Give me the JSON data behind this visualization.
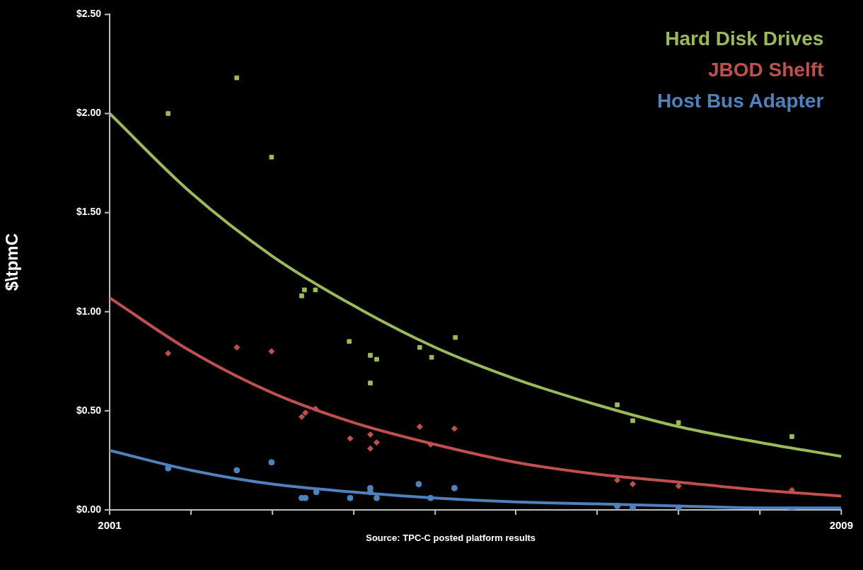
{
  "chart_data": {
    "type": "scatter",
    "ylabel": "$\\tpmC",
    "annotations": [
      "Source: TPC-C posted platform results"
    ],
    "xlim": [
      2001,
      2009
    ],
    "xticks": [
      2001,
      {
        "value": 2001.89,
        "label": null
      },
      {
        "value": 2002.78,
        "label": null
      },
      {
        "value": 2003.67,
        "label": null
      },
      {
        "value": 2004.56,
        "label": null
      },
      {
        "value": 2005.44,
        "label": null
      },
      {
        "value": 2006.33,
        "label": null
      },
      {
        "value": 2007.22,
        "label": null
      },
      {
        "value": 2008.11,
        "label": null
      },
      2009
    ],
    "ylim": [
      0,
      2.5
    ],
    "yticks": [
      {
        "value": 0,
        "label": "$0.00"
      },
      {
        "value": 0.5,
        "label": "$0.50"
      },
      {
        "value": 1,
        "label": "$1.00"
      },
      {
        "value": 1.5,
        "label": "$1.50"
      },
      {
        "value": 2,
        "label": "$2.00"
      },
      {
        "value": 2.5,
        "label": "$2.50"
      }
    ],
    "grid": false,
    "legend": "top right",
    "series": [
      {
        "name": "Hard Disk Drives",
        "color": "#9bbb59",
        "marker": "square",
        "x": [
          2001.64,
          2002.39,
          2002.77,
          2003.1,
          2003.13,
          2003.25,
          2003.62,
          2003.85,
          2003.92,
          2003.85,
          2004.39,
          2004.52,
          2004.78,
          2006.55,
          2006.72,
          2007.22,
          2008.46
        ],
        "values": [
          2.0,
          2.18,
          1.78,
          1.08,
          1.11,
          1.11,
          0.85,
          0.78,
          0.76,
          0.64,
          0.82,
          0.77,
          0.87,
          0.53,
          0.45,
          0.44,
          0.37
        ]
      },
      {
        "name": "JBOD Shelft",
        "color": "#c0504d",
        "marker": "diamond",
        "x": [
          2001.64,
          2002.39,
          2002.77,
          2003.1,
          2003.14,
          2003.25,
          2003.63,
          2003.85,
          2003.92,
          2003.85,
          2004.39,
          2004.51,
          2004.77,
          2006.55,
          2006.72,
          2007.22,
          2008.46
        ],
        "values": [
          0.79,
          0.82,
          0.8,
          0.47,
          0.49,
          0.51,
          0.36,
          0.38,
          0.34,
          0.31,
          0.42,
          0.33,
          0.41,
          0.15,
          0.13,
          0.12,
          0.1
        ]
      },
      {
        "name": "Host Bus Adapter",
        "color": "#4f81bd",
        "marker": "circle",
        "x": [
          2001.64,
          2002.39,
          2002.77,
          2003.1,
          2003.14,
          2003.26,
          2003.63,
          2003.85,
          2003.85,
          2003.92,
          2004.38,
          2004.51,
          2004.77,
          2006.55,
          2006.72,
          2007.22,
          2008.46
        ],
        "values": [
          0.21,
          0.2,
          0.24,
          0.06,
          0.06,
          0.09,
          0.06,
          0.11,
          0.09,
          0.06,
          0.13,
          0.06,
          0.11,
          0.02,
          0.01,
          0.01,
          0.0
        ]
      },
      {
        "type": "line",
        "color": "#9bbb59",
        "marker": "none",
        "x": [
          2001,
          2001.89,
          2002.78,
          2003.67,
          2004.56,
          2005.44,
          2006.33,
          2007.22,
          2008.11,
          2009
        ],
        "values": [
          2.0,
          1.6,
          1.28,
          1.03,
          0.82,
          0.66,
          0.53,
          0.42,
          0.34,
          0.27
        ]
      },
      {
        "type": "line",
        "color": "#c0504d",
        "marker": "none",
        "x": [
          2001,
          2001.89,
          2002.78,
          2003.67,
          2004.56,
          2005.44,
          2006.33,
          2007.22,
          2008.11,
          2009
        ],
        "values": [
          1.07,
          0.8,
          0.59,
          0.44,
          0.33,
          0.24,
          0.18,
          0.14,
          0.1,
          0.07
        ]
      },
      {
        "type": "line",
        "color": "#4f81bd",
        "marker": "none",
        "x": [
          2001,
          2001.89,
          2002.78,
          2003.67,
          2004.56,
          2005.44,
          2006.33,
          2007.22,
          2008.11,
          2009
        ],
        "values": [
          0.3,
          0.2,
          0.13,
          0.09,
          0.06,
          0.04,
          0.03,
          0.02,
          0.01,
          0.01
        ]
      }
    ]
  }
}
